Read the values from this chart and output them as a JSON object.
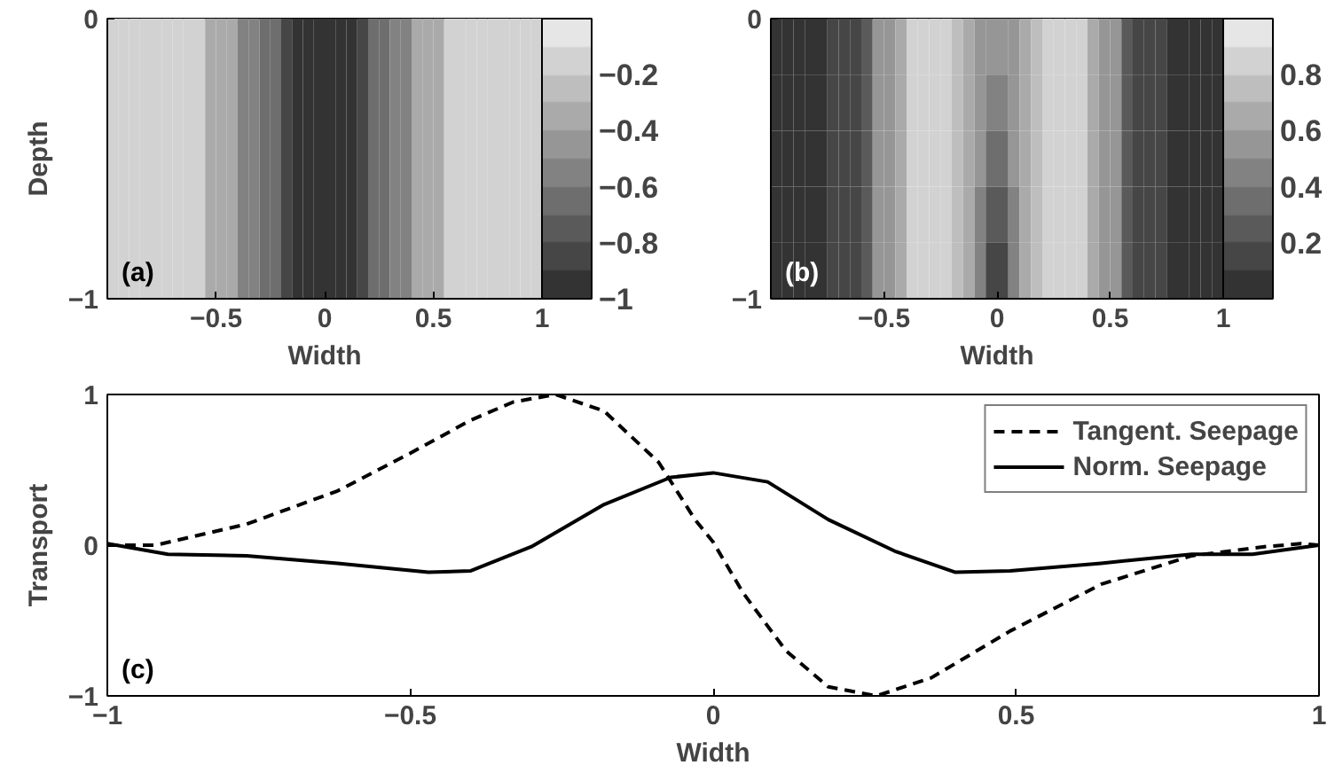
{
  "chart_data": [
    {
      "type": "heatmap",
      "xlabel": "Width",
      "ylabel": "Depth",
      "annotations": [
        "(a)"
      ],
      "x": [
        -0.975,
        -0.925,
        -0.875,
        -0.825,
        -0.775,
        -0.725,
        -0.675,
        -0.625,
        -0.575,
        -0.525,
        -0.475,
        -0.425,
        -0.375,
        -0.325,
        -0.275,
        -0.225,
        -0.175,
        -0.125,
        -0.075,
        -0.025,
        0.025,
        0.075,
        0.125,
        0.175,
        0.225,
        0.275,
        0.325,
        0.375,
        0.425,
        0.475,
        0.525,
        0.575,
        0.625,
        0.675,
        0.725,
        0.775,
        0.825,
        0.875,
        0.925,
        0.975
      ],
      "cells": [
        [
          -0.15,
          -0.15,
          -0.15,
          -0.15,
          -0.15,
          -0.15,
          -0.15,
          -0.15,
          -0.15,
          -0.35,
          -0.35,
          -0.35,
          -0.55,
          -0.55,
          -0.65,
          -0.65,
          -0.85,
          -0.95,
          -0.95,
          -0.95,
          -0.95,
          -0.95,
          -0.95,
          -0.85,
          -0.65,
          -0.65,
          -0.55,
          -0.55,
          -0.35,
          -0.35,
          -0.35,
          -0.15,
          -0.15,
          -0.15,
          -0.15,
          -0.15,
          -0.15,
          -0.15,
          -0.15,
          -0.15
        ]
      ],
      "xlim": [
        -1,
        1
      ],
      "xticks": [
        -0.5,
        0,
        0.5,
        1
      ],
      "ylim": [
        -1,
        0
      ],
      "yticks": [
        -1,
        0
      ],
      "clim": [
        -1,
        0
      ],
      "cticks": [
        -1,
        -0.8,
        -0.6,
        -0.4,
        -0.2
      ]
    },
    {
      "type": "heatmap",
      "xlabel": "Width",
      "annotations": [
        "(b)"
      ],
      "x": [
        -0.975,
        -0.925,
        -0.875,
        -0.825,
        -0.775,
        -0.725,
        -0.675,
        -0.625,
        -0.575,
        -0.525,
        -0.475,
        -0.425,
        -0.375,
        -0.325,
        -0.275,
        -0.225,
        -0.175,
        -0.125,
        -0.075,
        -0.025,
        0.025,
        0.075,
        0.125,
        0.175,
        0.225,
        0.275,
        0.325,
        0.375,
        0.425,
        0.475,
        0.525,
        0.575,
        0.625,
        0.675,
        0.725,
        0.775,
        0.825,
        0.875,
        0.925,
        0.975
      ],
      "cells": [
        [
          0.05,
          0.05,
          0.05,
          0.05,
          0.05,
          0.15,
          0.15,
          0.15,
          0.3,
          0.5,
          0.5,
          0.65,
          0.85,
          0.85,
          0.85,
          0.85,
          0.75,
          0.65,
          0.6,
          0.55,
          0.55,
          0.6,
          0.65,
          0.75,
          0.85,
          0.85,
          0.85,
          0.85,
          0.65,
          0.5,
          0.5,
          0.3,
          0.15,
          0.15,
          0.15,
          0.05,
          0.05,
          0.05,
          0.05,
          0.05
        ],
        [
          0.05,
          0.05,
          0.05,
          0.05,
          0.05,
          0.15,
          0.15,
          0.15,
          0.3,
          0.5,
          0.5,
          0.65,
          0.85,
          0.85,
          0.85,
          0.85,
          0.75,
          0.65,
          0.55,
          0.45,
          0.45,
          0.55,
          0.65,
          0.75,
          0.85,
          0.85,
          0.85,
          0.85,
          0.65,
          0.5,
          0.5,
          0.3,
          0.15,
          0.15,
          0.15,
          0.05,
          0.05,
          0.05,
          0.05,
          0.05
        ],
        [
          0.05,
          0.05,
          0.05,
          0.05,
          0.05,
          0.15,
          0.15,
          0.15,
          0.3,
          0.5,
          0.5,
          0.65,
          0.85,
          0.85,
          0.85,
          0.85,
          0.75,
          0.65,
          0.5,
          0.35,
          0.35,
          0.5,
          0.65,
          0.75,
          0.85,
          0.85,
          0.85,
          0.85,
          0.65,
          0.5,
          0.5,
          0.3,
          0.15,
          0.15,
          0.15,
          0.05,
          0.05,
          0.05,
          0.05,
          0.05
        ],
        [
          0.05,
          0.05,
          0.05,
          0.05,
          0.05,
          0.15,
          0.15,
          0.15,
          0.3,
          0.5,
          0.5,
          0.65,
          0.85,
          0.85,
          0.85,
          0.85,
          0.75,
          0.65,
          0.45,
          0.25,
          0.25,
          0.45,
          0.65,
          0.75,
          0.85,
          0.85,
          0.85,
          0.85,
          0.65,
          0.5,
          0.5,
          0.3,
          0.15,
          0.15,
          0.15,
          0.05,
          0.05,
          0.05,
          0.05,
          0.05
        ],
        [
          0.05,
          0.05,
          0.05,
          0.05,
          0.05,
          0.15,
          0.15,
          0.15,
          0.3,
          0.5,
          0.5,
          0.65,
          0.85,
          0.85,
          0.85,
          0.85,
          0.75,
          0.65,
          0.45,
          0.15,
          0.15,
          0.45,
          0.65,
          0.75,
          0.85,
          0.85,
          0.85,
          0.85,
          0.65,
          0.5,
          0.5,
          0.3,
          0.15,
          0.15,
          0.15,
          0.05,
          0.05,
          0.05,
          0.05,
          0.05
        ]
      ],
      "xlim": [
        -1,
        1
      ],
      "xticks": [
        -0.5,
        0,
        0.5,
        1
      ],
      "ylim": [
        -1,
        0
      ],
      "yticks": [
        -1,
        0
      ],
      "clim": [
        0,
        1
      ],
      "cticks": [
        0.2,
        0.4,
        0.6,
        0.8
      ]
    },
    {
      "type": "line",
      "xlabel": "Width",
      "ylabel": "Transport",
      "annotations": [
        "(c)"
      ],
      "legend": "top right",
      "series": [
        {
          "name": "Tangent. Seepage",
          "color": "#000000",
          "line_style": "dashed",
          "x": [
            -1,
            -0.92,
            -0.77,
            -0.62,
            -0.5,
            -0.4,
            -0.33,
            -0.26,
            -0.18,
            -0.09,
            -0.03,
            0,
            0.05,
            0.12,
            0.19,
            0.27,
            0.36,
            0.49,
            0.64,
            0.79,
            0.91,
            0.97,
            1
          ],
          "values": [
            0,
            0,
            0.14,
            0.36,
            0.61,
            0.83,
            0.95,
            1,
            0.89,
            0.55,
            0.17,
            0.02,
            -0.32,
            -0.7,
            -0.94,
            -1,
            -0.88,
            -0.57,
            -0.26,
            -0.07,
            -0.01,
            0.01,
            0
          ]
        },
        {
          "name": "Norm. Seepage",
          "color": "#000000",
          "line_style": "solid",
          "x": [
            -1,
            -0.9,
            -0.77,
            -0.62,
            -0.47,
            -0.4,
            -0.3,
            -0.18,
            -0.07,
            0,
            0.09,
            0.19,
            0.3,
            0.4,
            0.49,
            0.64,
            0.79,
            0.89,
            1
          ],
          "values": [
            0.01,
            -0.06,
            -0.07,
            -0.12,
            -0.18,
            -0.17,
            -0.01,
            0.27,
            0.45,
            0.48,
            0.42,
            0.17,
            -0.04,
            -0.18,
            -0.17,
            -0.12,
            -0.06,
            -0.06,
            0
          ]
        }
      ],
      "xlim": [
        -1,
        1
      ],
      "xticks": [
        -1,
        -0.5,
        0,
        0.5,
        1
      ],
      "ylim": [
        -1,
        1
      ],
      "yticks": [
        -1,
        0,
        1
      ]
    }
  ]
}
